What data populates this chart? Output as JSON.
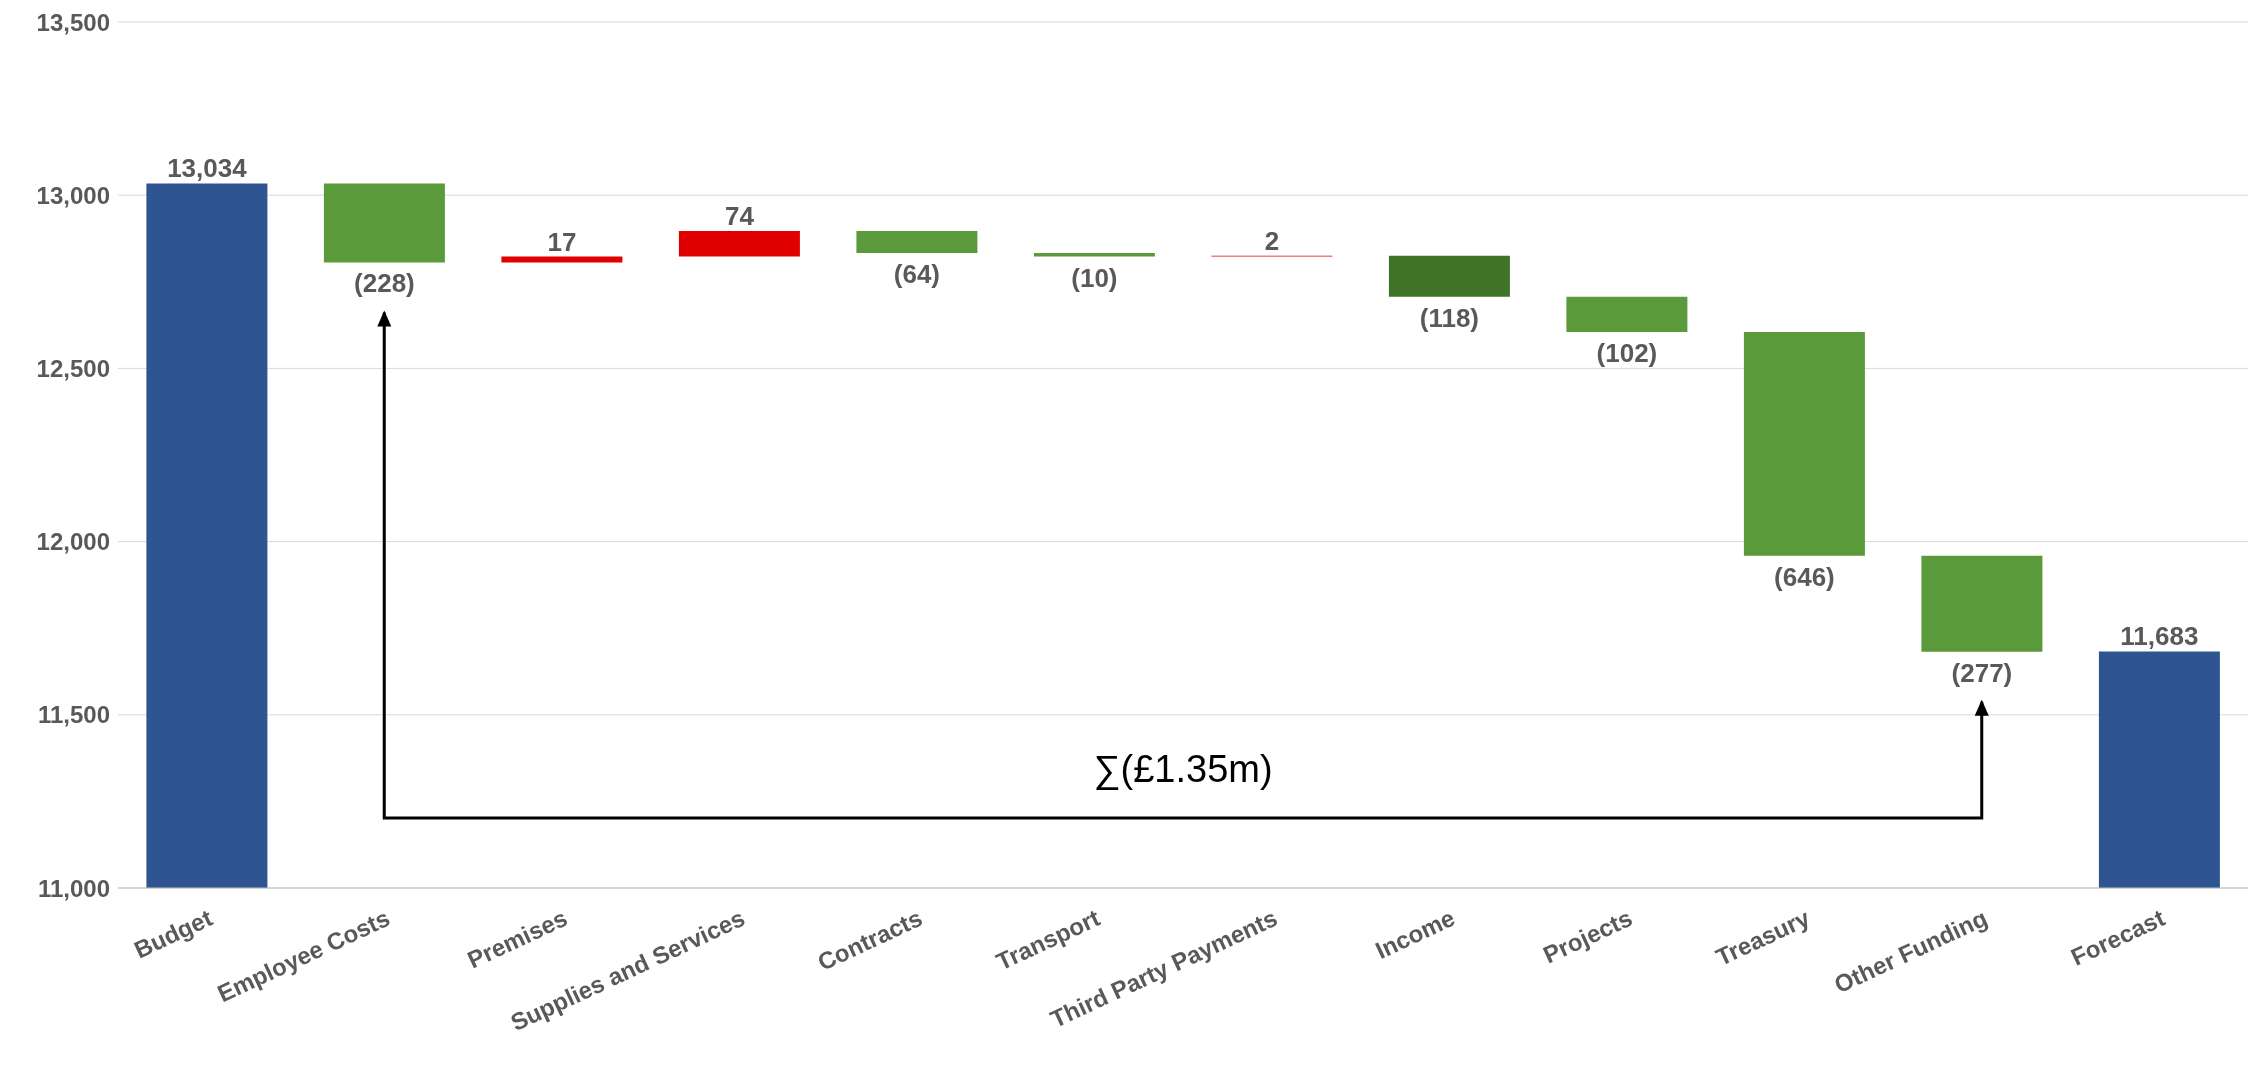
{
  "chart_data": {
    "type": "bar",
    "categories": [
      "Budget",
      "Employee Costs",
      "Premises",
      "Supplies and Services",
      "Contracts",
      "Transport",
      "Third Party Payments",
      "Income",
      "Projects",
      "Treasury",
      "Other Funding",
      "Forecast"
    ],
    "values": [
      13034,
      -228,
      17,
      74,
      -64,
      -10,
      2,
      -118,
      -102,
      -646,
      -277,
      11683
    ],
    "base": [
      null,
      13034,
      12806,
      12823,
      12897,
      12833,
      12823,
      12825,
      12707,
      12605,
      11959,
      null
    ],
    "colors": [
      "#2e5591",
      "#5a9a3a",
      "#e00000",
      "#e00000",
      "#5a9a3a",
      "#5a9a3a",
      "#e00000",
      "#3f7327",
      "#5a9a3a",
      "#5a9a3a",
      "#5a9a3a",
      "#2e5591"
    ],
    "value_labels": [
      "13,034",
      "(228)",
      "17",
      "74",
      "(64)",
      "(10)",
      "2",
      "(118)",
      "(102)",
      "(646)",
      "(277)",
      "11,683"
    ],
    "ylim": [
      11000,
      13500
    ],
    "yticks": [
      {
        "value": 11000,
        "label": "11,000"
      },
      {
        "value": 11500,
        "label": "11,500"
      },
      {
        "value": 12000,
        "label": "12,000"
      },
      {
        "value": 12500,
        "label": "12,500"
      },
      {
        "value": 13000,
        "label": "13,000"
      },
      {
        "value": 13500,
        "label": "13,500"
      }
    ],
    "grid": "y",
    "legend": false,
    "annotations": [
      "∑(£1.35m)"
    ]
  }
}
